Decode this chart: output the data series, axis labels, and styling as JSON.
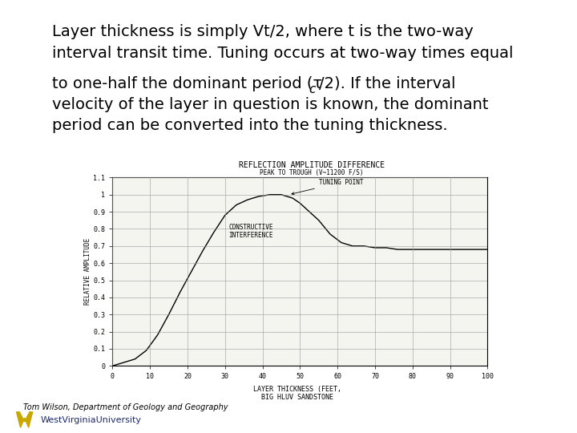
{
  "bg_color": "#ffffff",
  "top_panel_color": "#dde2f0",
  "bottom_panel_color": "#fafaf0",
  "text1_line1": "Layer thickness is simply Vt/2, where t is the two-way",
  "text1_line2": "interval transit time. Tuning occurs at two-way times equal",
  "text2_line1_pre": "to one-half the dominant period (",
  "text2_tau": "τ",
  "text2_sub": "c",
  "text2_line1_post": "/2). If the interval",
  "text2_line2": "velocity of the layer in question is known, the dominant",
  "text2_line3": "period can be converted into the tuning thickness.",
  "chart_title": "REFLECTION AMPLITUDE DIFFERENCE",
  "chart_subtitle": "PEAK TO TROUGH (V~11200 F/S)",
  "xlabel_line1": "LAYER THICKNESS (FEET,",
  "xlabel_line2": "BIG HLUV SANDSTONE",
  "ylabel": "RELATIVE AMPLITUDE",
  "annotation1": "TUNING POINT",
  "annotation2": "CONSTRUCTIVE\nINTERFERENCE",
  "footer_text": "Tom Wilson, Department of Geology and Geography",
  "wvu_text": "WestVirginiaUniversity",
  "curve_x": [
    0,
    3,
    6,
    9,
    12,
    15,
    18,
    21,
    24,
    27,
    30,
    33,
    36,
    39,
    42,
    45,
    48,
    50,
    52,
    55,
    58,
    61,
    64,
    67,
    70,
    73,
    76,
    80,
    85,
    90,
    95,
    100
  ],
  "curve_y": [
    0.0,
    0.02,
    0.04,
    0.09,
    0.18,
    0.3,
    0.43,
    0.55,
    0.67,
    0.78,
    0.88,
    0.94,
    0.97,
    0.99,
    1.0,
    1.0,
    0.98,
    0.95,
    0.91,
    0.85,
    0.77,
    0.72,
    0.7,
    0.7,
    0.69,
    0.69,
    0.68,
    0.68,
    0.68,
    0.68,
    0.68,
    0.68
  ],
  "ylim": [
    0,
    1.1
  ],
  "xlim": [
    0,
    100
  ],
  "grid_color": "#999999",
  "line_color": "#000000",
  "top_stripe_color": "#1e2a6e",
  "bottom_stripe_color": "#c8a800",
  "font_size_main": 14,
  "font_size_chart": 6.5,
  "font_size_footer": 7
}
